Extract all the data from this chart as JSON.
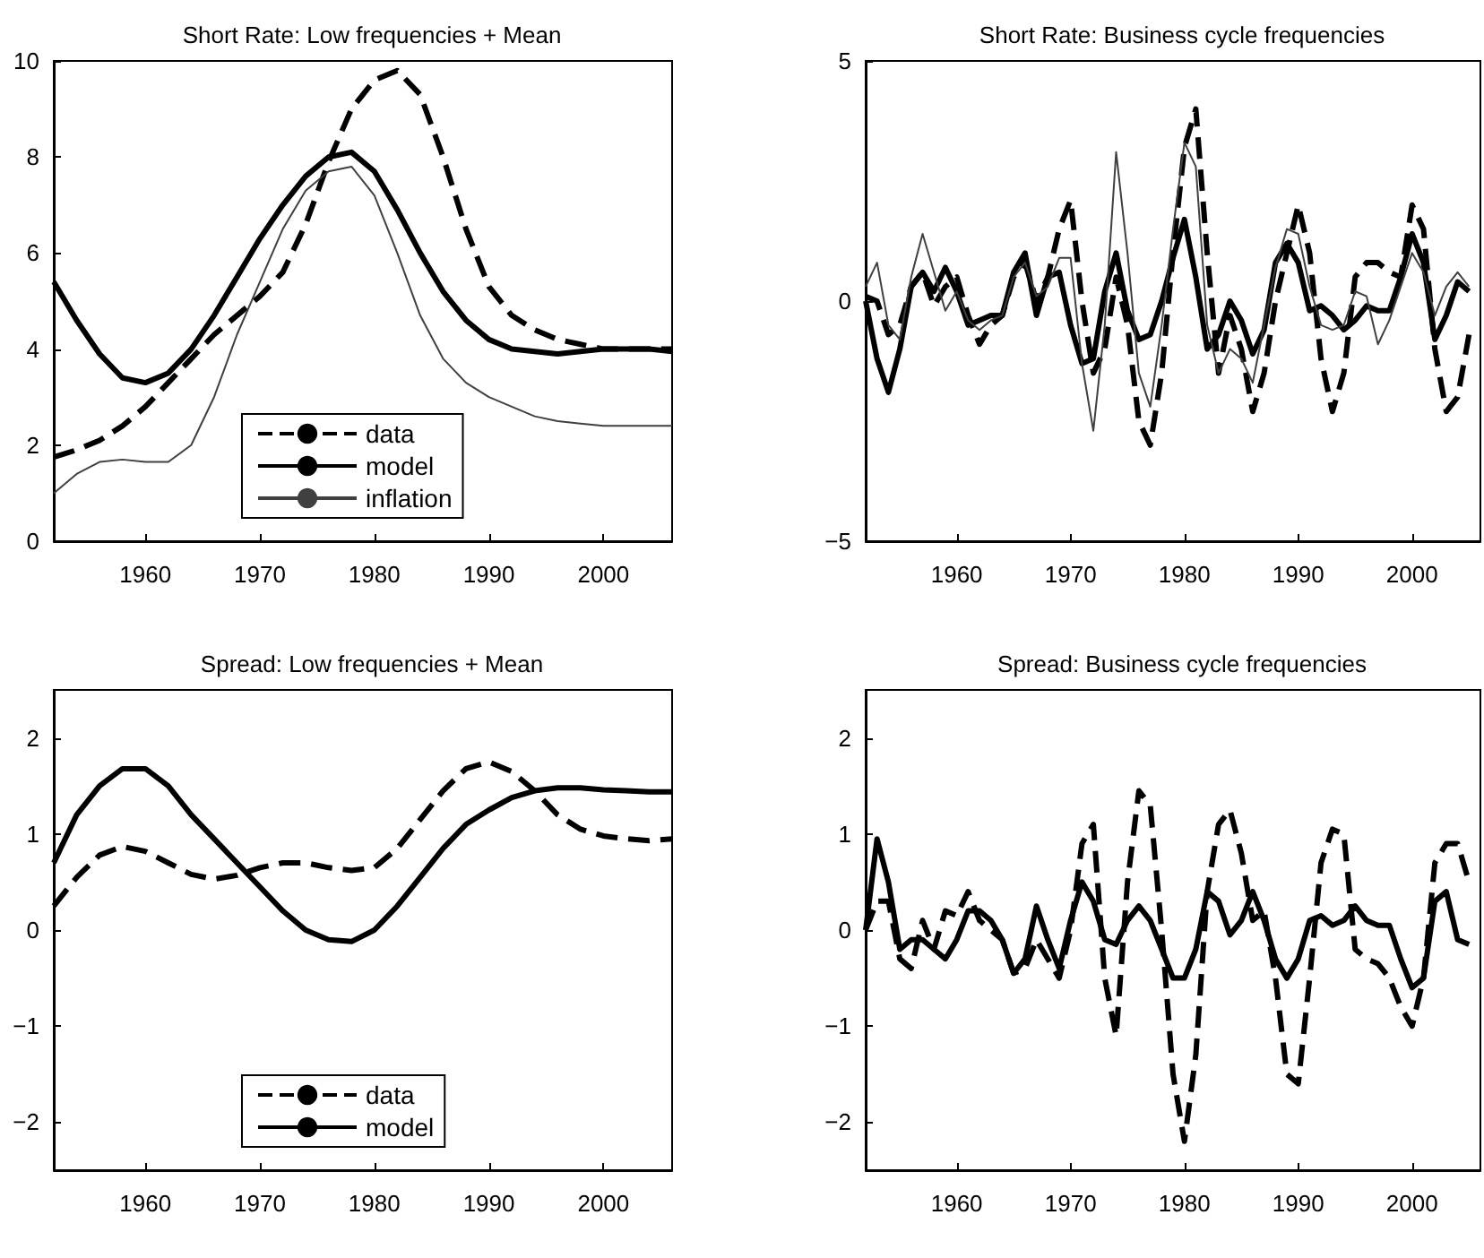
{
  "chart_data": [
    {
      "type": "line",
      "title": "Short Rate: Low frequencies + Mean",
      "x": [
        1952,
        1954,
        1956,
        1958,
        1960,
        1962,
        1964,
        1966,
        1968,
        1970,
        1972,
        1974,
        1976,
        1978,
        1980,
        1982,
        1984,
        1986,
        1988,
        1990,
        1992,
        1994,
        1996,
        1998,
        2000,
        2002,
        2004,
        2006
      ],
      "xlim": [
        1952,
        2006
      ],
      "xticks": [
        1960,
        1970,
        1980,
        1990,
        2000
      ],
      "ylim": [
        0,
        10
      ],
      "yticks": [
        0,
        2,
        4,
        6,
        8,
        10
      ],
      "grid": false,
      "legend": "bottom",
      "marker": "none",
      "series": [
        {
          "name": "data",
          "color": "#000000",
          "line_style": "dashed",
          "values": [
            1.75,
            1.9,
            2.1,
            2.4,
            2.8,
            3.3,
            3.8,
            4.3,
            4.7,
            5.1,
            5.6,
            6.6,
            7.9,
            9.0,
            9.6,
            9.8,
            9.3,
            8.0,
            6.5,
            5.3,
            4.7,
            4.4,
            4.2,
            4.1,
            4.0,
            4.0,
            4.0,
            4.0
          ]
        },
        {
          "name": "model",
          "color": "#000000",
          "line_style": "solid",
          "values": [
            5.4,
            4.6,
            3.9,
            3.4,
            3.3,
            3.5,
            4.0,
            4.7,
            5.5,
            6.3,
            7.0,
            7.6,
            8.0,
            8.1,
            7.7,
            6.9,
            6.0,
            5.2,
            4.6,
            4.2,
            4.0,
            3.95,
            3.9,
            3.95,
            4.0,
            4.0,
            4.0,
            3.95
          ]
        },
        {
          "name": "inflation",
          "color": "#404040",
          "line_style": "solid",
          "values": [
            1.0,
            1.4,
            1.65,
            1.7,
            1.65,
            1.65,
            2.0,
            3.0,
            4.3,
            5.4,
            6.5,
            7.3,
            7.7,
            7.8,
            7.2,
            6.0,
            4.7,
            3.8,
            3.3,
            3.0,
            2.8,
            2.6,
            2.5,
            2.45,
            2.4,
            2.4,
            2.4,
            2.4
          ]
        }
      ]
    },
    {
      "type": "line",
      "title": "Short Rate: Business cycle frequencies",
      "x": [
        1952,
        1953,
        1954,
        1955,
        1956,
        1957,
        1958,
        1959,
        1960,
        1961,
        1962,
        1963,
        1964,
        1965,
        1966,
        1967,
        1968,
        1969,
        1970,
        1971,
        1972,
        1973,
        1974,
        1975,
        1976,
        1977,
        1978,
        1979,
        1980,
        1981,
        1982,
        1983,
        1984,
        1985,
        1986,
        1987,
        1988,
        1989,
        1990,
        1991,
        1992,
        1993,
        1994,
        1995,
        1996,
        1997,
        1998,
        1999,
        2000,
        2001,
        2002,
        2003,
        2004,
        2005
      ],
      "xlim": [
        1952,
        2006
      ],
      "xticks": [
        1960,
        1970,
        1980,
        1990,
        2000
      ],
      "ylim": [
        -5,
        5
      ],
      "yticks": [
        -5,
        0,
        5
      ],
      "grid": false,
      "marker": "none",
      "series": [
        {
          "color": "#000000",
          "line_style": "dashed",
          "values": [
            0.1,
            0,
            -0.7,
            -0.5,
            0.3,
            0.6,
            -0.1,
            0.3,
            0.5,
            -0.3,
            -0.9,
            -0.5,
            -0.3,
            0.5,
            0.8,
            0,
            0.5,
            1.5,
            2.1,
            0,
            -1.5,
            -1,
            0.5,
            -0.5,
            -2.5,
            -3.0,
            -1.5,
            1.0,
            3.2,
            4.0,
            1.0,
            -1.5,
            -0.3,
            -1.0,
            -2.3,
            -1.5,
            0,
            1.0,
            2.0,
            1.0,
            -1.2,
            -2.3,
            -1.5,
            0.5,
            0.8,
            0.8,
            0.6,
            0.5,
            2.0,
            1.5,
            -1,
            -2.3,
            -2.0,
            -0.7
          ]
        },
        {
          "color": "#000000",
          "line_style": "solid",
          "values": [
            0,
            -1.2,
            -1.9,
            -1.0,
            0.3,
            0.6,
            0.2,
            0.7,
            0.2,
            -0.5,
            -0.4,
            -0.3,
            -0.3,
            0.6,
            1.0,
            -0.3,
            0.5,
            0.6,
            -0.5,
            -1.3,
            -1.2,
            0.2,
            1.0,
            -0.2,
            -0.8,
            -0.7,
            0,
            0.9,
            1.7,
            0.5,
            -1.0,
            -0.7,
            0,
            -0.4,
            -1.1,
            -0.6,
            0.8,
            1.2,
            0.8,
            -0.2,
            -0.1,
            -0.3,
            -0.6,
            -0.4,
            -0.1,
            -0.2,
            -0.2,
            0.5,
            1.4,
            0.8,
            -0.8,
            -0.3,
            0.4,
            0.2
          ]
        },
        {
          "color": "#404040",
          "line_style": "solid",
          "values": [
            0.3,
            0.8,
            -0.5,
            -0.8,
            0.5,
            1.4,
            0.6,
            -0.2,
            0.2,
            -0.4,
            -0.6,
            -0.4,
            -0.3,
            0.5,
            0.8,
            0.1,
            0.3,
            0.9,
            0.9,
            -1.3,
            -2.7,
            -0.5,
            3.1,
            1.0,
            -1.5,
            -2.2,
            -0.5,
            1.5,
            3.3,
            2.8,
            -0.5,
            -1.5,
            -1.0,
            -1.2,
            -1.7,
            -0.5,
            0.7,
            1.5,
            1.4,
            0.3,
            -0.5,
            -0.6,
            -0.5,
            0.2,
            0.1,
            -0.9,
            -0.4,
            0.3,
            1.0,
            0.6,
            -0.3,
            0.3,
            0.6,
            0.3
          ]
        }
      ]
    },
    {
      "type": "line",
      "title": "Spread: Low frequencies + Mean",
      "x": [
        1952,
        1954,
        1956,
        1958,
        1960,
        1962,
        1964,
        1966,
        1968,
        1970,
        1972,
        1974,
        1976,
        1978,
        1980,
        1982,
        1984,
        1986,
        1988,
        1990,
        1992,
        1994,
        1996,
        1998,
        2000,
        2002,
        2004,
        2006
      ],
      "xlim": [
        1952,
        2006
      ],
      "xticks": [
        1960,
        1970,
        1980,
        1990,
        2000
      ],
      "ylim": [
        -2.5,
        2.5
      ],
      "yticks": [
        -2,
        -1,
        0,
        1,
        2
      ],
      "grid": false,
      "legend": "bottom",
      "marker": "none",
      "series": [
        {
          "name": "data",
          "color": "#000000",
          "line_style": "dashed",
          "values": [
            0.25,
            0.55,
            0.78,
            0.87,
            0.82,
            0.7,
            0.58,
            0.53,
            0.57,
            0.65,
            0.7,
            0.7,
            0.65,
            0.62,
            0.65,
            0.85,
            1.15,
            1.45,
            1.68,
            1.75,
            1.65,
            1.45,
            1.2,
            1.05,
            0.98,
            0.95,
            0.93,
            0.95
          ]
        },
        {
          "name": "model",
          "color": "#000000",
          "line_style": "solid",
          "values": [
            0.7,
            1.2,
            1.5,
            1.68,
            1.68,
            1.5,
            1.2,
            0.95,
            0.7,
            0.45,
            0.2,
            0,
            -0.1,
            -0.12,
            0,
            0.25,
            0.55,
            0.85,
            1.1,
            1.25,
            1.38,
            1.45,
            1.48,
            1.48,
            1.46,
            1.45,
            1.44,
            1.44
          ]
        }
      ]
    },
    {
      "type": "line",
      "title": "Spread: Business cycle frequencies",
      "x": [
        1952,
        1953,
        1954,
        1955,
        1956,
        1957,
        1958,
        1959,
        1960,
        1961,
        1962,
        1963,
        1964,
        1965,
        1966,
        1967,
        1968,
        1969,
        1970,
        1971,
        1972,
        1973,
        1974,
        1975,
        1976,
        1977,
        1978,
        1979,
        1980,
        1981,
        1982,
        1983,
        1984,
        1985,
        1986,
        1987,
        1988,
        1989,
        1990,
        1991,
        1992,
        1993,
        1994,
        1995,
        1996,
        1997,
        1998,
        1999,
        2000,
        2001,
        2002,
        2003,
        2004,
        2005
      ],
      "xlim": [
        1952,
        2006
      ],
      "xticks": [
        1960,
        1970,
        1980,
        1990,
        2000
      ],
      "ylim": [
        -2.5,
        2.5
      ],
      "yticks": [
        -2,
        -1,
        0,
        1,
        2
      ],
      "grid": false,
      "marker": "none",
      "series": [
        {
          "color": "#000000",
          "line_style": "dashed",
          "values": [
            0,
            0.3,
            0.3,
            -0.3,
            -0.4,
            0.1,
            -0.2,
            0.2,
            0.15,
            0.4,
            0.1,
            0.0,
            -0.1,
            -0.45,
            -0.4,
            -0.1,
            -0.3,
            -0.5,
            0,
            0.9,
            1.1,
            -0.5,
            -1.1,
            0.5,
            1.45,
            1.3,
            0,
            -1.5,
            -2.2,
            -1.3,
            0.4,
            1.1,
            1.25,
            0.8,
            0.1,
            0.2,
            -0.5,
            -1.5,
            -1.6,
            -0.5,
            0.7,
            1.05,
            1.0,
            -0.2,
            -0.3,
            -0.35,
            -0.5,
            -0.8,
            -1.0,
            -0.5,
            0.7,
            0.9,
            0.9,
            0.5
          ]
        },
        {
          "color": "#000000",
          "line_style": "solid",
          "values": [
            0,
            0.95,
            0.5,
            -0.2,
            -0.1,
            -0.1,
            -0.2,
            -0.3,
            -0.1,
            0.2,
            0.2,
            0.1,
            -0.1,
            -0.45,
            -0.3,
            0.25,
            -0.1,
            -0.4,
            0.1,
            0.5,
            0.3,
            -0.1,
            -0.15,
            0.1,
            0.25,
            0.1,
            -0.2,
            -0.5,
            -0.5,
            -0.2,
            0.4,
            0.3,
            -0.05,
            0.1,
            0.4,
            0.1,
            -0.3,
            -0.5,
            -0.3,
            0.1,
            0.15,
            0.05,
            0.1,
            0.25,
            0.1,
            0.05,
            0.05,
            -0.3,
            -0.6,
            -0.5,
            0.3,
            0.4,
            -0.1,
            -0.15
          ]
        }
      ]
    }
  ]
}
